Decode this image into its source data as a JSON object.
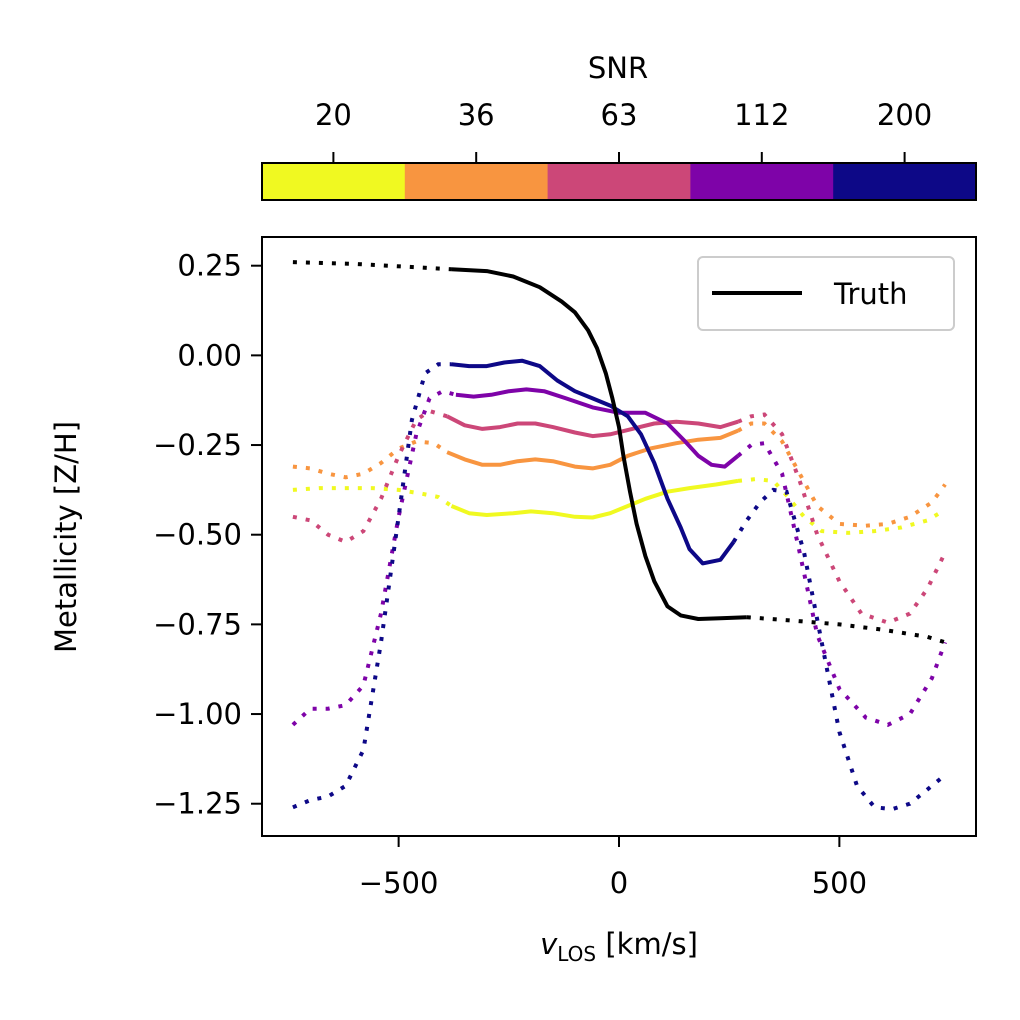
{
  "chart_data": {
    "type": "line",
    "xlabel_var": "v",
    "xlabel_sub": "LOS",
    "xlabel_unit": " [km/s]",
    "ylabel": "Metallicity [Z/H]",
    "xlim": [
      -810,
      810
    ],
    "ylim": [
      -1.34,
      0.33
    ],
    "xticks": [
      -500,
      0,
      500
    ],
    "xtick_labels": [
      "−500",
      "0",
      "500"
    ],
    "yticks": [
      0.25,
      0.0,
      -0.25,
      -0.5,
      -0.75,
      -1.0,
      -1.25
    ],
    "ytick_labels": [
      "0.25",
      "0.00",
      "−0.25",
      "−0.50",
      "−0.75",
      "−1.00",
      "−1.25"
    ],
    "legend": {
      "label": "Truth",
      "position": "top-right"
    },
    "colorbar": {
      "title": "SNR",
      "labels": [
        "20",
        "36",
        "63",
        "112",
        "200"
      ],
      "colors": [
        "#f0f921",
        "#f89540",
        "#cc4778",
        "#7e03a8",
        "#0d0887"
      ]
    },
    "truth": {
      "name": "Truth",
      "color": "#000000",
      "dotted_left": [
        [
          -740,
          0.26
        ],
        [
          -600,
          0.255
        ],
        [
          -450,
          0.245
        ],
        [
          -380,
          0.24
        ]
      ],
      "solid": [
        [
          -380,
          0.24
        ],
        [
          -300,
          0.235
        ],
        [
          -240,
          0.22
        ],
        [
          -180,
          0.19
        ],
        [
          -130,
          0.15
        ],
        [
          -100,
          0.12
        ],
        [
          -70,
          0.07
        ],
        [
          -50,
          0.02
        ],
        [
          -30,
          -0.05
        ],
        [
          -15,
          -0.12
        ],
        [
          0,
          -0.2
        ],
        [
          10,
          -0.28
        ],
        [
          25,
          -0.38
        ],
        [
          40,
          -0.47
        ],
        [
          60,
          -0.56
        ],
        [
          80,
          -0.63
        ],
        [
          110,
          -0.7
        ],
        [
          140,
          -0.725
        ],
        [
          180,
          -0.735
        ],
        [
          230,
          -0.733
        ],
        [
          290,
          -0.73
        ]
      ],
      "dotted_right": [
        [
          290,
          -0.73
        ],
        [
          400,
          -0.74
        ],
        [
          500,
          -0.75
        ],
        [
          600,
          -0.765
        ],
        [
          700,
          -0.785
        ],
        [
          740,
          -0.8
        ]
      ]
    },
    "series": [
      {
        "name": "20",
        "color": "#f0f921",
        "dotted_left": [
          [
            -740,
            -0.375
          ],
          [
            -680,
            -0.37
          ],
          [
            -620,
            -0.37
          ],
          [
            -560,
            -0.37
          ],
          [
            -500,
            -0.375
          ],
          [
            -450,
            -0.385
          ],
          [
            -410,
            -0.395
          ],
          [
            -380,
            -0.42
          ]
        ],
        "solid": [
          [
            -380,
            -0.42
          ],
          [
            -340,
            -0.44
          ],
          [
            -300,
            -0.445
          ],
          [
            -240,
            -0.44
          ],
          [
            -200,
            -0.435
          ],
          [
            -150,
            -0.44
          ],
          [
            -100,
            -0.45
          ],
          [
            -60,
            -0.452
          ],
          [
            -20,
            -0.44
          ],
          [
            20,
            -0.42
          ],
          [
            60,
            -0.4
          ],
          [
            110,
            -0.38
          ],
          [
            160,
            -0.37
          ],
          [
            220,
            -0.36
          ],
          [
            270,
            -0.35
          ]
        ],
        "dotted_right": [
          [
            270,
            -0.35
          ],
          [
            310,
            -0.345
          ],
          [
            350,
            -0.35
          ],
          [
            380,
            -0.39
          ],
          [
            420,
            -0.45
          ],
          [
            460,
            -0.49
          ],
          [
            520,
            -0.495
          ],
          [
            580,
            -0.49
          ],
          [
            640,
            -0.48
          ],
          [
            700,
            -0.46
          ],
          [
            740,
            -0.43
          ]
        ]
      },
      {
        "name": "36",
        "color": "#f89540",
        "dotted_left": [
          [
            -740,
            -0.31
          ],
          [
            -700,
            -0.315
          ],
          [
            -660,
            -0.33
          ],
          [
            -620,
            -0.34
          ],
          [
            -580,
            -0.33
          ],
          [
            -540,
            -0.3
          ],
          [
            -500,
            -0.26
          ],
          [
            -460,
            -0.24
          ],
          [
            -420,
            -0.245
          ],
          [
            -390,
            -0.27
          ]
        ],
        "solid": [
          [
            -390,
            -0.27
          ],
          [
            -350,
            -0.29
          ],
          [
            -310,
            -0.305
          ],
          [
            -270,
            -0.305
          ],
          [
            -230,
            -0.295
          ],
          [
            -190,
            -0.29
          ],
          [
            -150,
            -0.295
          ],
          [
            -100,
            -0.31
          ],
          [
            -60,
            -0.315
          ],
          [
            -20,
            -0.305
          ],
          [
            20,
            -0.28
          ],
          [
            70,
            -0.26
          ],
          [
            130,
            -0.245
          ],
          [
            180,
            -0.235
          ],
          [
            230,
            -0.23
          ],
          [
            270,
            -0.21
          ]
        ],
        "dotted_right": [
          [
            270,
            -0.21
          ],
          [
            300,
            -0.19
          ],
          [
            330,
            -0.19
          ],
          [
            370,
            -0.24
          ],
          [
            410,
            -0.33
          ],
          [
            450,
            -0.42
          ],
          [
            500,
            -0.47
          ],
          [
            560,
            -0.475
          ],
          [
            610,
            -0.47
          ],
          [
            660,
            -0.45
          ],
          [
            710,
            -0.41
          ],
          [
            740,
            -0.36
          ]
        ]
      },
      {
        "name": "63",
        "color": "#cc4778",
        "dotted_left": [
          [
            -740,
            -0.45
          ],
          [
            -700,
            -0.46
          ],
          [
            -660,
            -0.5
          ],
          [
            -620,
            -0.52
          ],
          [
            -580,
            -0.49
          ],
          [
            -540,
            -0.4
          ],
          [
            -500,
            -0.28
          ],
          [
            -460,
            -0.18
          ],
          [
            -430,
            -0.155
          ],
          [
            -390,
            -0.17
          ]
        ],
        "solid": [
          [
            -390,
            -0.17
          ],
          [
            -350,
            -0.195
          ],
          [
            -310,
            -0.205
          ],
          [
            -270,
            -0.2
          ],
          [
            -230,
            -0.19
          ],
          [
            -190,
            -0.19
          ],
          [
            -150,
            -0.2
          ],
          [
            -100,
            -0.215
          ],
          [
            -60,
            -0.225
          ],
          [
            -20,
            -0.22
          ],
          [
            30,
            -0.205
          ],
          [
            80,
            -0.19
          ],
          [
            130,
            -0.185
          ],
          [
            180,
            -0.19
          ],
          [
            230,
            -0.2
          ],
          [
            270,
            -0.185
          ]
        ],
        "dotted_right": [
          [
            270,
            -0.185
          ],
          [
            300,
            -0.17
          ],
          [
            330,
            -0.165
          ],
          [
            370,
            -0.22
          ],
          [
            410,
            -0.35
          ],
          [
            450,
            -0.5
          ],
          [
            500,
            -0.63
          ],
          [
            550,
            -0.72
          ],
          [
            610,
            -0.745
          ],
          [
            660,
            -0.72
          ],
          [
            700,
            -0.65
          ],
          [
            740,
            -0.55
          ]
        ]
      },
      {
        "name": "112",
        "color": "#7e03a8",
        "dotted_left": [
          [
            -740,
            -1.03
          ],
          [
            -700,
            -0.985
          ],
          [
            -660,
            -0.985
          ],
          [
            -620,
            -0.975
          ],
          [
            -580,
            -0.92
          ],
          [
            -540,
            -0.72
          ],
          [
            -500,
            -0.45
          ],
          [
            -460,
            -0.22
          ],
          [
            -430,
            -0.12
          ],
          [
            -400,
            -0.1
          ],
          [
            -370,
            -0.11
          ]
        ],
        "solid": [
          [
            -370,
            -0.11
          ],
          [
            -330,
            -0.115
          ],
          [
            -290,
            -0.11
          ],
          [
            -250,
            -0.1
          ],
          [
            -210,
            -0.095
          ],
          [
            -170,
            -0.1
          ],
          [
            -120,
            -0.12
          ],
          [
            -60,
            -0.145
          ],
          [
            0,
            -0.16
          ],
          [
            60,
            -0.16
          ],
          [
            110,
            -0.19
          ],
          [
            150,
            -0.24
          ],
          [
            180,
            -0.28
          ],
          [
            210,
            -0.305
          ],
          [
            240,
            -0.31
          ],
          [
            270,
            -0.28
          ]
        ],
        "dotted_right": [
          [
            270,
            -0.28
          ],
          [
            300,
            -0.25
          ],
          [
            330,
            -0.245
          ],
          [
            370,
            -0.33
          ],
          [
            410,
            -0.55
          ],
          [
            450,
            -0.78
          ],
          [
            500,
            -0.93
          ],
          [
            560,
            -1.01
          ],
          [
            610,
            -1.03
          ],
          [
            660,
            -1.0
          ],
          [
            710,
            -0.9
          ],
          [
            740,
            -0.8
          ]
        ]
      },
      {
        "name": "200",
        "color": "#0d0887",
        "dotted_left": [
          [
            -740,
            -1.26
          ],
          [
            -700,
            -1.24
          ],
          [
            -660,
            -1.23
          ],
          [
            -620,
            -1.2
          ],
          [
            -580,
            -1.1
          ],
          [
            -540,
            -0.8
          ],
          [
            -500,
            -0.45
          ],
          [
            -470,
            -0.18
          ],
          [
            -440,
            -0.05
          ],
          [
            -410,
            -0.025
          ],
          [
            -380,
            -0.025
          ]
        ],
        "solid": [
          [
            -380,
            -0.025
          ],
          [
            -340,
            -0.03
          ],
          [
            -300,
            -0.03
          ],
          [
            -260,
            -0.02
          ],
          [
            -220,
            -0.015
          ],
          [
            -180,
            -0.03
          ],
          [
            -140,
            -0.07
          ],
          [
            -100,
            -0.1
          ],
          [
            -60,
            -0.12
          ],
          [
            -20,
            -0.14
          ],
          [
            20,
            -0.17
          ],
          [
            50,
            -0.22
          ],
          [
            80,
            -0.3
          ],
          [
            110,
            -0.4
          ],
          [
            140,
            -0.48
          ],
          [
            160,
            -0.54
          ],
          [
            190,
            -0.58
          ],
          [
            230,
            -0.57
          ],
          [
            260,
            -0.52
          ]
        ],
        "dotted_right": [
          [
            260,
            -0.52
          ],
          [
            290,
            -0.46
          ],
          [
            320,
            -0.41
          ],
          [
            350,
            -0.375
          ],
          [
            380,
            -0.38
          ],
          [
            420,
            -0.55
          ],
          [
            460,
            -0.8
          ],
          [
            500,
            -1.05
          ],
          [
            540,
            -1.2
          ],
          [
            580,
            -1.26
          ],
          [
            620,
            -1.265
          ],
          [
            660,
            -1.25
          ],
          [
            700,
            -1.21
          ],
          [
            740,
            -1.17
          ]
        ]
      }
    ]
  }
}
